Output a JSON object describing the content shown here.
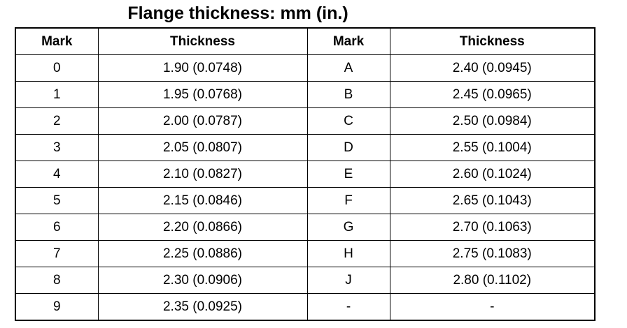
{
  "title": "Flange thickness: mm (in.)",
  "table": {
    "header": [
      "Mark",
      "Thickness",
      "Mark",
      "Thickness"
    ],
    "rows": [
      [
        "0",
        "1.90 (0.0748)",
        "A",
        "2.40 (0.0945)"
      ],
      [
        "1",
        "1.95 (0.0768)",
        "B",
        "2.45 (0.0965)"
      ],
      [
        "2",
        "2.00 (0.0787)",
        "C",
        "2.50 (0.0984)"
      ],
      [
        "3",
        "2.05 (0.0807)",
        "D",
        "2.55 (0.1004)"
      ],
      [
        "4",
        "2.10 (0.0827)",
        "E",
        "2.60 (0.1024)"
      ],
      [
        "5",
        "2.15 (0.0846)",
        "F",
        "2.65 (0.1043)"
      ],
      [
        "6",
        "2.20 (0.0866)",
        "G",
        "2.70 (0.1063)"
      ],
      [
        "7",
        "2.25 (0.0886)",
        "H",
        "2.75 (0.1083)"
      ],
      [
        "8",
        "2.30 (0.0906)",
        "J",
        "2.80 (0.1102)"
      ],
      [
        "9",
        "2.35 (0.0925)",
        "-",
        "-"
      ]
    ]
  }
}
